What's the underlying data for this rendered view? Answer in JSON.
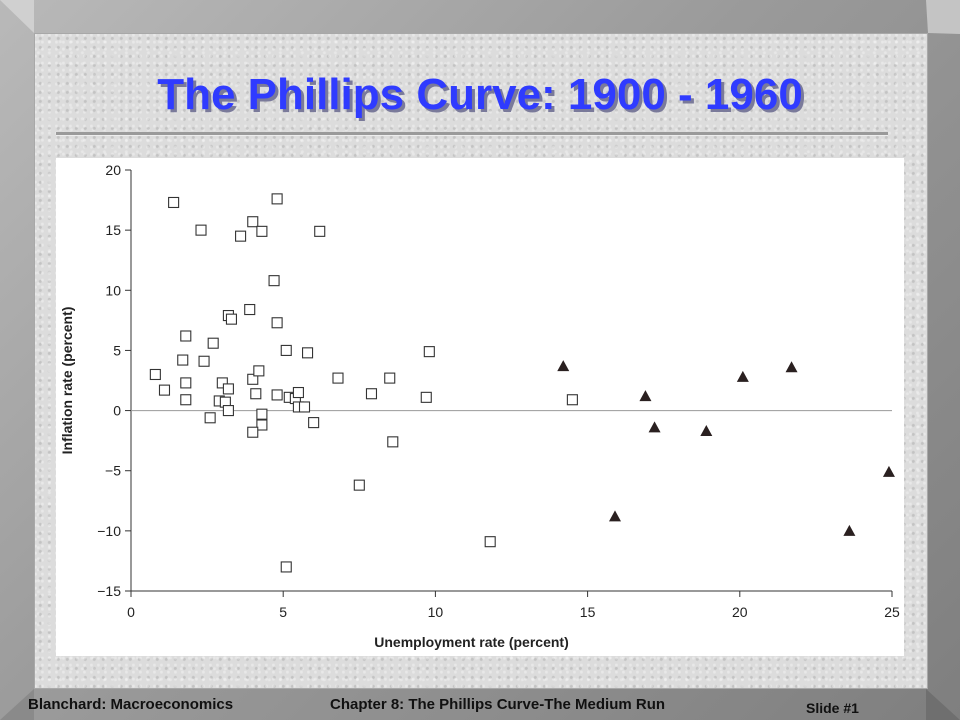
{
  "slide": {
    "title": "The Phillips Curve: 1900 - 1960",
    "footer_left": "Blanchard: Macroeconomics",
    "footer_center": "Chapter 8: The Phillips Curve-The Medium Run",
    "footer_right": "Slide #1",
    "colors": {
      "title": "#2f3bff",
      "frame": "#9a9a9a"
    }
  },
  "chart_data": {
    "type": "scatter",
    "title": "",
    "xlabel": "Unemployment rate (percent)",
    "ylabel": "Inflation rate (percent)",
    "xlim": [
      0,
      25
    ],
    "ylim": [
      -15,
      20
    ],
    "x_ticks": [
      0,
      5,
      10,
      15,
      20,
      25
    ],
    "y_ticks": [
      -15,
      -10,
      -5,
      0,
      5,
      10,
      15,
      20
    ],
    "x_tick_labels": [
      "0",
      "5",
      "10",
      "15",
      "20",
      "25"
    ],
    "y_tick_labels": [
      "−15",
      "−10",
      "−5",
      "0",
      "5",
      "10",
      "15",
      "20"
    ],
    "grid": false,
    "zero_line": true,
    "series": [
      {
        "marker": "square",
        "color": "#333333",
        "points": [
          [
            1.4,
            17.3
          ],
          [
            2.3,
            15.0
          ],
          [
            3.6,
            14.5
          ],
          [
            4.0,
            15.7
          ],
          [
            4.3,
            14.9
          ],
          [
            4.8,
            17.6
          ],
          [
            6.2,
            14.9
          ],
          [
            4.7,
            10.8
          ],
          [
            3.9,
            8.4
          ],
          [
            3.2,
            7.9
          ],
          [
            3.3,
            7.6
          ],
          [
            4.8,
            7.3
          ],
          [
            1.8,
            6.2
          ],
          [
            2.7,
            5.6
          ],
          [
            1.7,
            4.2
          ],
          [
            2.4,
            4.1
          ],
          [
            5.1,
            5.0
          ],
          [
            5.8,
            4.8
          ],
          [
            9.8,
            4.9
          ],
          [
            0.8,
            3.0
          ],
          [
            1.1,
            1.7
          ],
          [
            1.8,
            2.3
          ],
          [
            1.8,
            0.9
          ],
          [
            3.0,
            2.3
          ],
          [
            3.2,
            1.8
          ],
          [
            4.0,
            2.6
          ],
          [
            4.2,
            3.3
          ],
          [
            2.9,
            0.8
          ],
          [
            3.1,
            0.7
          ],
          [
            3.2,
            0.0
          ],
          [
            4.1,
            1.4
          ],
          [
            4.8,
            1.3
          ],
          [
            5.2,
            1.1
          ],
          [
            5.4,
            1.0
          ],
          [
            5.5,
            1.5
          ],
          [
            5.5,
            0.3
          ],
          [
            5.7,
            0.3
          ],
          [
            2.6,
            -0.6
          ],
          [
            4.3,
            -0.3
          ],
          [
            4.3,
            -1.2
          ],
          [
            4.0,
            -1.8
          ],
          [
            6.0,
            -1.0
          ],
          [
            6.8,
            2.7
          ],
          [
            7.9,
            1.4
          ],
          [
            8.5,
            2.7
          ],
          [
            9.7,
            1.1
          ],
          [
            8.6,
            -2.6
          ],
          [
            14.5,
            0.9
          ],
          [
            7.5,
            -6.2
          ],
          [
            11.8,
            -10.9
          ],
          [
            5.1,
            -13.0
          ]
        ]
      },
      {
        "marker": "triangle",
        "color": "#2a2020",
        "points": [
          [
            14.2,
            3.7
          ],
          [
            16.9,
            1.2
          ],
          [
            17.2,
            -1.4
          ],
          [
            15.9,
            -8.8
          ],
          [
            18.9,
            -1.7
          ],
          [
            20.1,
            2.8
          ],
          [
            21.7,
            3.6
          ],
          [
            23.6,
            -10.0
          ],
          [
            24.9,
            -5.1
          ]
        ]
      }
    ]
  }
}
